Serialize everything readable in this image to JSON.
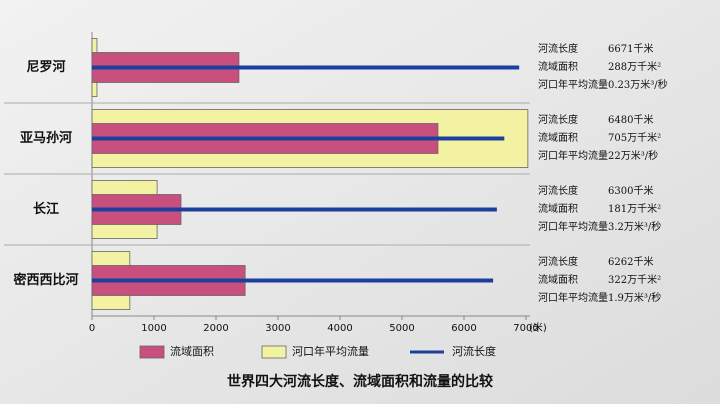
{
  "chart_data": {
    "type": "bar",
    "title": "世界四大河流长度、流域面积和流量的比较",
    "x_unit": "(米)",
    "categories": [
      "尼罗河",
      "亚马孙河",
      "长江",
      "密西西比河"
    ],
    "series": [
      {
        "name": "流域面积",
        "color": "#c9507e",
        "kind": "bar",
        "values": [
          2370,
          5580,
          1435,
          2470
        ]
      },
      {
        "name": "河口年平均流量",
        "color": "#f2f2a2",
        "kind": "bar",
        "values": [
          80,
          7030,
          1050,
          610
        ]
      },
      {
        "name": "河流长度",
        "color": "#1c3f9e",
        "kind": "line",
        "values": [
          6890,
          6650,
          6530,
          6470
        ]
      }
    ],
    "xlim": [
      0,
      7000
    ],
    "xticks": [
      0,
      1000,
      2000,
      3000,
      4000,
      5000,
      6000,
      7000
    ],
    "annotations": [
      [
        {
          "label": "河流长度",
          "value": "6671千米"
        },
        {
          "label": "流域面积",
          "value": "288万千米²"
        },
        {
          "label": "河口年平均流量",
          "value": "0.23万米³/秒"
        }
      ],
      [
        {
          "label": "河流长度",
          "value": "6480千米"
        },
        {
          "label": "流域面积",
          "value": "705万千米²"
        },
        {
          "label": "河口年平均流量",
          "value": "22万米³/秒"
        }
      ],
      [
        {
          "label": "河流长度",
          "value": "6300千米"
        },
        {
          "label": "流域面积",
          "value": "181万千米²"
        },
        {
          "label": "河口年平均流量",
          "value": "3.2万米³/秒"
        }
      ],
      [
        {
          "label": "河流长度",
          "value": "6262千米"
        },
        {
          "label": "流域面积",
          "value": "322万千米²"
        },
        {
          "label": "河口年平均流量",
          "value": "1.9万米³/秒"
        }
      ]
    ]
  }
}
